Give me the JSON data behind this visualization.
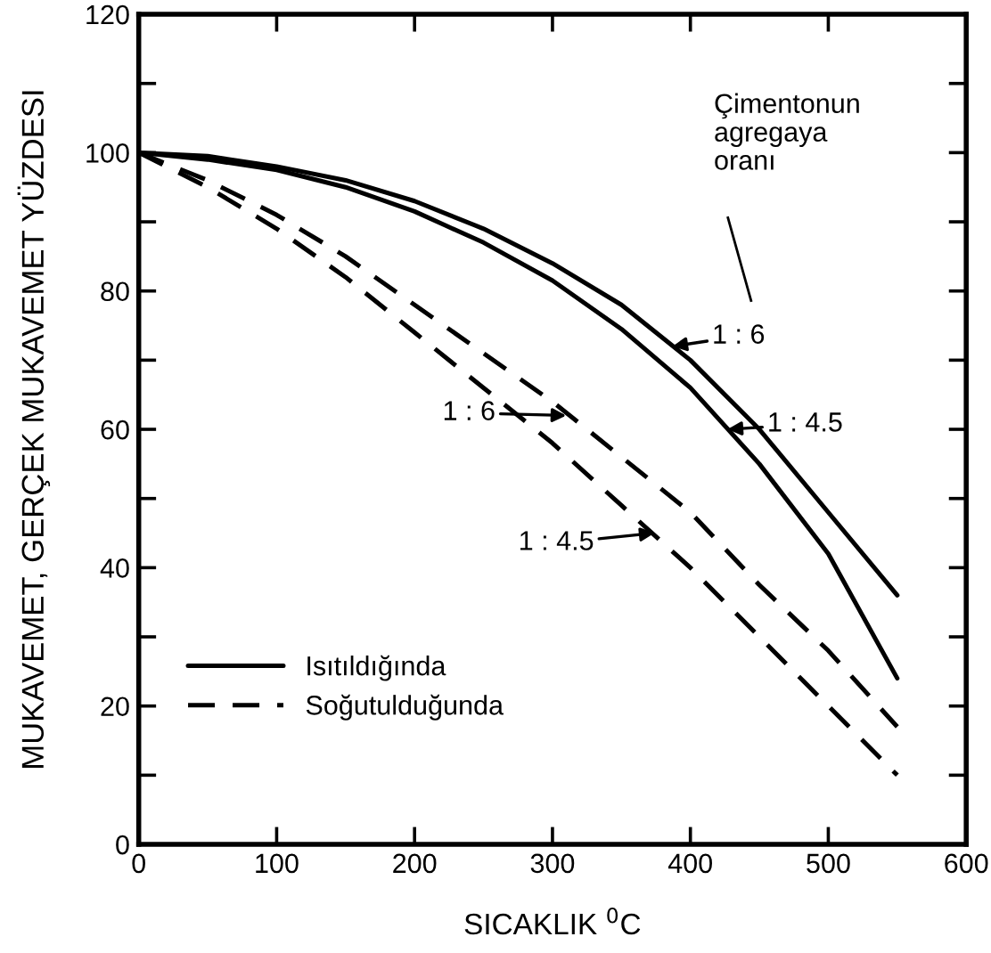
{
  "chart_data": {
    "type": "line",
    "xlabel": "SICAKLIK $^{0}$C",
    "ylabel": "MUKAVEMET, GERÇEK MUKAVEMET YÜZDESI",
    "x": [
      0,
      50,
      100,
      150,
      200,
      250,
      300,
      350,
      400,
      450,
      500,
      550
    ],
    "series": [
      {
        "name": "Isıtıldığında",
        "color": "#000000",
        "line_style": "solid",
        "values": [
          100,
          99.5,
          98,
          96,
          93,
          89,
          84,
          78,
          70,
          60,
          48,
          36
        ]
      },
      {
        "color": "#000000",
        "line_style": "solid",
        "values": [
          100,
          99,
          97.5,
          95,
          91.5,
          87,
          81.5,
          74.5,
          66,
          55,
          42,
          24
        ]
      },
      {
        "name": "Soğutulduğunda",
        "color": "#000000",
        "line_style": "dashed",
        "values": [
          100,
          96,
          91,
          85,
          78,
          71,
          64,
          56,
          48,
          37.5,
          28,
          17
        ]
      },
      {
        "color": "#000000",
        "line_style": "dashed",
        "values": [
          100,
          95,
          89,
          82,
          74,
          66,
          58,
          49,
          40,
          30,
          20,
          10
        ]
      }
    ],
    "xlim": [
      0,
      600
    ],
    "ylim": [
      0,
      120
    ],
    "xticks": [
      0,
      100,
      200,
      300,
      400,
      500,
      600
    ],
    "yticks": [
      0,
      {
        "value": 10,
        "label": null
      },
      20,
      {
        "value": 30,
        "label": null
      },
      40,
      {
        "value": 50,
        "label": null
      },
      60,
      {
        "value": 70,
        "label": null
      },
      80,
      {
        "value": 90,
        "label": null
      },
      100,
      {
        "value": 110,
        "label": null
      },
      120
    ],
    "annotations": [
      {
        "text": "1 : 6",
        "x": 387,
        "y": 72
      },
      {
        "text": "1 : 4.5",
        "x": 427,
        "y": 60
      },
      {
        "text": "1 : 6",
        "x": 310,
        "y": 62
      },
      {
        "text": "1 : 4.5",
        "x": 374,
        "y": 45
      },
      "Çimentonun\nagregaya\noranı"
    ],
    "grid": false,
    "legend": "bottom left",
    "marker": "none"
  }
}
